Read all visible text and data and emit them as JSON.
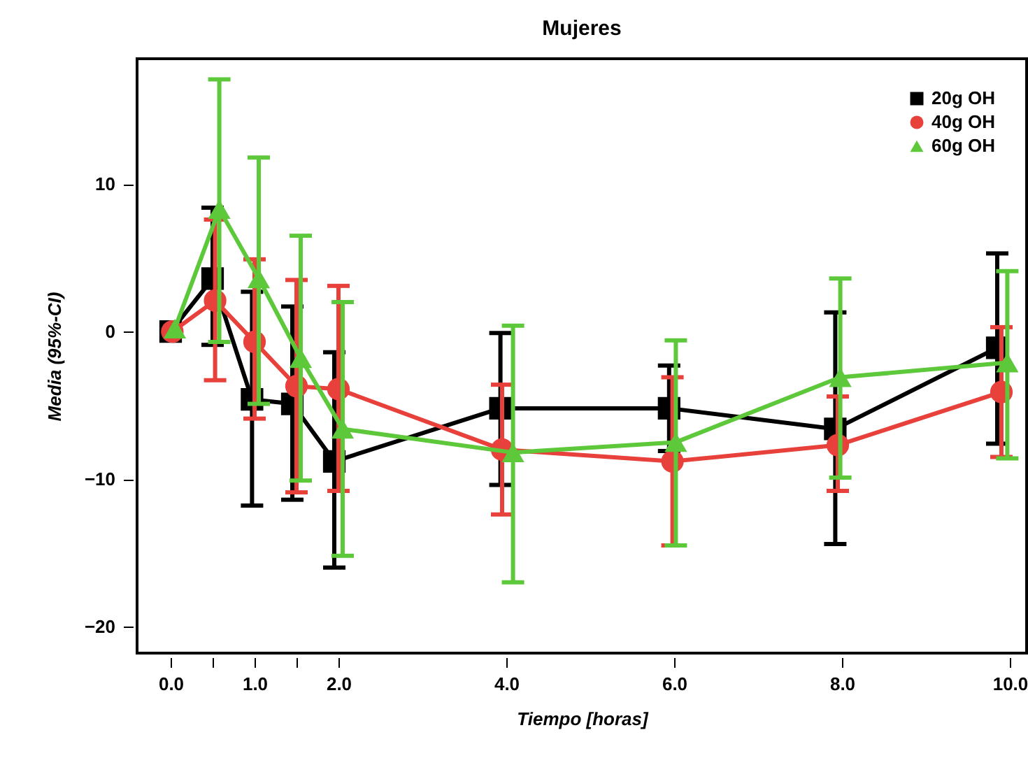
{
  "chart_data": {
    "type": "line",
    "title": "Mujeres",
    "xlabel": "Tiempo [horas]",
    "ylabel": "Media (95%-CI)",
    "xlim": [
      -0.4,
      10.2
    ],
    "ylim": [
      -21.8,
      18.5
    ],
    "xticks": [
      {
        "value": 0,
        "label": "0.0"
      },
      {
        "value": 0.5,
        "label": null
      },
      {
        "value": 1,
        "label": "1.0"
      },
      {
        "value": 1.5,
        "label": null
      },
      {
        "value": 2,
        "label": "2.0"
      },
      {
        "value": 4,
        "label": "4.0"
      },
      {
        "value": 6,
        "label": "6.0"
      },
      {
        "value": 8,
        "label": "8.0"
      },
      {
        "value": 10,
        "label": "10.0"
      }
    ],
    "yticks": [
      -20,
      -10,
      0,
      10
    ],
    "grid": false,
    "legend": "top right",
    "line_style": "solid",
    "series": [
      {
        "name": "20g OH",
        "color": "#000000",
        "marker": "square",
        "x": [
          0,
          0.5,
          0.97,
          1.45,
          1.95,
          3.93,
          5.94,
          7.92,
          9.85
        ],
        "values": [
          0,
          3.6,
          -4.6,
          -4.9,
          -8.8,
          -5.2,
          -5.2,
          -6.6,
          -1.1
        ],
        "errors": [
          null,
          [
            -0.9,
            8.4
          ],
          [
            -11.8,
            2.7
          ],
          [
            -11.4,
            1.7
          ],
          [
            -16.0,
            -1.4
          ],
          [
            -10.4,
            -0.1
          ],
          [
            -8.1,
            -2.3
          ],
          [
            -14.4,
            1.3
          ],
          [
            -7.6,
            5.3
          ]
        ]
      },
      {
        "name": "40g OH",
        "color": "#e8403a",
        "marker": "circle",
        "x": [
          0.02,
          0.53,
          1.0,
          1.5,
          2.0,
          3.95,
          5.98,
          7.95,
          9.9
        ],
        "values": [
          0,
          2.1,
          -0.7,
          -3.7,
          -3.9,
          -8.0,
          -8.8,
          -7.7,
          -4.1
        ],
        "errors": [
          null,
          [
            -3.3,
            7.6
          ],
          [
            -5.9,
            4.9
          ],
          [
            -10.9,
            3.5
          ],
          [
            -10.8,
            3.1
          ],
          [
            -12.4,
            -3.6
          ],
          [
            -14.5,
            -3.1
          ],
          [
            -10.8,
            -4.4
          ],
          [
            -8.5,
            0.3
          ]
        ]
      },
      {
        "name": "60g OH",
        "color": "#5cc83a",
        "marker": "triangle",
        "x": [
          0.05,
          0.58,
          1.05,
          1.55,
          2.05,
          4.08,
          6.02,
          7.98,
          9.97
        ],
        "values": [
          0.2,
          8.3,
          3.6,
          -1.8,
          -6.6,
          -8.2,
          -7.5,
          -3.1,
          -2.1
        ],
        "errors": [
          null,
          [
            -0.7,
            17.1
          ],
          [
            -4.9,
            11.8
          ],
          [
            -10.1,
            6.5
          ],
          [
            -15.2,
            2.0
          ],
          [
            -17.0,
            0.4
          ],
          [
            -14.5,
            -0.6
          ],
          [
            -9.9,
            3.6
          ],
          [
            -8.6,
            4.1
          ]
        ]
      }
    ]
  }
}
